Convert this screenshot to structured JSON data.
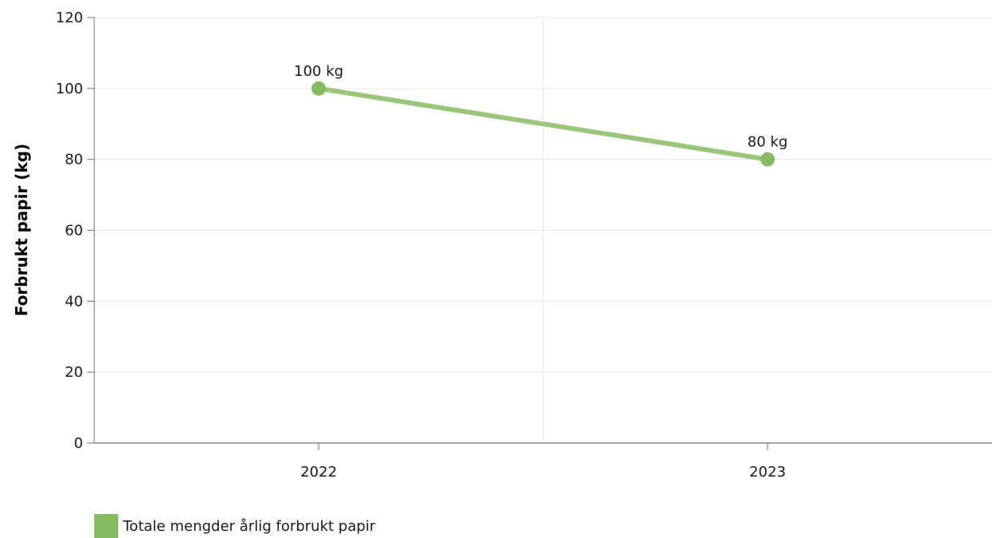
{
  "chart_data": {
    "type": "line",
    "title": "",
    "xlabel": "",
    "ylabel": "Forbrukt papir (kg)",
    "categories": [
      "2022",
      "2023"
    ],
    "ylim": [
      0,
      120
    ],
    "yticks": [
      0,
      20,
      40,
      60,
      80,
      100,
      120
    ],
    "grid": true,
    "legend_position": "bottom-left",
    "series": [
      {
        "name": "Totale mengder årlig forbrukt papir",
        "values": [
          100,
          80
        ],
        "labels": [
          "100 kg",
          "80 kg"
        ],
        "color": "#86bb62",
        "line_color": "#99c77a"
      }
    ]
  }
}
